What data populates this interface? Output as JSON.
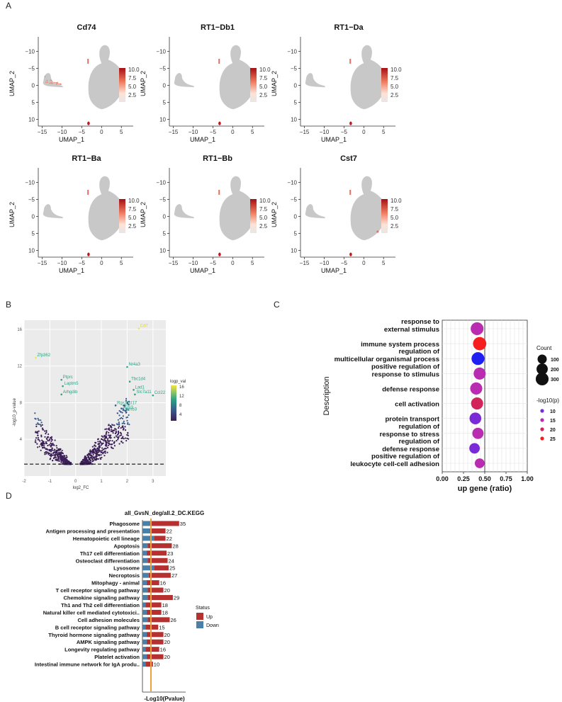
{
  "panel_labels": {
    "a": "A",
    "b": "B",
    "c": "C",
    "d": "D"
  },
  "umap": {
    "x_label": "UMAP_1",
    "y_label": "UMAP_2",
    "x_ticks": [
      "−15",
      "−10",
      "−5",
      "0",
      "5"
    ],
    "y_ticks": [
      "10",
      "5",
      "0",
      "−5",
      "−10"
    ],
    "legend_ticks": [
      "10.0",
      "7.5",
      "5.0",
      "2.5"
    ],
    "colors": {
      "cluster": "#c8c8c8",
      "expr_high": "#c0181f",
      "expr_low": "#fde3d6"
    }
  },
  "volcano": {
    "x_label": "log2_FC",
    "y_label": "-log10_p-value",
    "legend_title": "logp_val",
    "legend_ticks": [
      "16",
      "12",
      "8",
      "4"
    ]
  },
  "go": {
    "x_label": "up gene (ratio)",
    "y_label": "Description",
    "count_title": "Count",
    "count_items": [
      "100",
      "200",
      "300"
    ],
    "p_title": "-log10(p)",
    "p_items": [
      "10",
      "15",
      "20",
      "25"
    ]
  },
  "kegg": {
    "title": "all_GvsN_deg/all.2_DC.KEGG",
    "x_label": "-Log10(Pvalue)",
    "legend_title": "Status",
    "legend_items": [
      "Up",
      "Down"
    ],
    "colors": {
      "up": "#b5302e",
      "down": "#4a7fa8",
      "threshold": "#e8a33c"
    }
  },
  "chart_data": [
    {
      "type": "scatter",
      "title": "UMAP feature plots",
      "panels": [
        "Cd74",
        "RT1−Db1",
        "RT1−Da",
        "RT1−Ba",
        "RT1−Bb",
        "Cst7"
      ],
      "xlabel": "UMAP_1",
      "ylabel": "UMAP_2",
      "xlim": [
        -16,
        8
      ],
      "ylim": [
        -12,
        13
      ],
      "x_ticks": [
        -15,
        -10,
        -5,
        0,
        5
      ],
      "y_ticks": [
        -10,
        -5,
        0,
        5,
        10
      ],
      "color_scale": {
        "min": 0,
        "max": 10,
        "ticks": [
          2.5,
          5.0,
          7.5,
          10.0
        ]
      }
    },
    {
      "type": "scatter",
      "title": "",
      "xlabel": "log2_FC",
      "ylabel": "-log10_p-value",
      "xlim": [
        -2,
        3.5
      ],
      "ylim": [
        0,
        17
      ],
      "x_ticks": [
        -2,
        -1,
        0,
        1,
        2,
        3
      ],
      "y_ticks": [
        4,
        8,
        12,
        16
      ],
      "threshold_y": 1.3,
      "labeled_points": [
        {
          "label": "Cd7",
          "x": 2.45,
          "y": 16.1
        },
        {
          "label": "Zfp362",
          "x": -1.55,
          "y": 12.9
        },
        {
          "label": "Ptprc",
          "x": -0.55,
          "y": 10.5
        },
        {
          "label": "Laptm5",
          "x": -0.5,
          "y": 9.8
        },
        {
          "label": "Arhgdib",
          "x": -0.55,
          "y": 8.9
        },
        {
          "label": "Nr4a3",
          "x": 2.0,
          "y": 11.9
        },
        {
          "label": "Tbc1d4",
          "x": 2.1,
          "y": 10.3
        },
        {
          "label": "Lad1",
          "x": 2.25,
          "y": 9.4
        },
        {
          "label": "Slc7a11",
          "x": 2.3,
          "y": 8.9
        },
        {
          "label": "Ccl22",
          "x": 3.0,
          "y": 8.8
        },
        {
          "label": "Rgs1",
          "x": 1.55,
          "y": 7.7
        },
        {
          "label": "Ccl17",
          "x": 1.9,
          "y": 7.7
        },
        {
          "label": "Ebi3",
          "x": 1.85,
          "y": 7.2
        },
        {
          "label": "Cacnb3",
          "x": 1.75,
          "y": 7.0
        }
      ],
      "legend": {
        "title": "logp_val",
        "ticks": [
          16,
          12,
          8,
          4
        ]
      }
    },
    {
      "type": "scatter",
      "title": "",
      "xlabel": "up gene (ratio)",
      "ylabel": "Description",
      "xlim": [
        0,
        1
      ],
      "x_ticks": [
        "0.00",
        "0.25",
        "0.50",
        "0.75",
        "1.00"
      ],
      "reference_x": 0.5,
      "categories": [
        "response to\nexternal stimulus",
        "immune system process",
        "regulation of\nmulticellular organismal process",
        "positive regulation of\nresponse to stimulus",
        "defense response",
        "cell activation",
        "protein transport",
        "regulation of\nresponse to stress",
        "regulation of\ndefense response",
        "positive regulation of\nleukocyte cell-cell adhesion"
      ],
      "ratio": [
        0.41,
        0.44,
        0.42,
        0.44,
        0.4,
        0.41,
        0.39,
        0.42,
        0.38,
        0.44
      ],
      "count": [
        300,
        330,
        300,
        250,
        250,
        250,
        230,
        200,
        160,
        120
      ],
      "neg_log10_p": [
        13,
        28,
        5,
        12,
        14,
        23,
        9,
        12,
        9,
        14
      ],
      "legend": {
        "count": [
          100,
          200,
          300
        ],
        "neg_log10_p": [
          10,
          15,
          20,
          25
        ]
      }
    },
    {
      "type": "bar",
      "title": "all_GvsN_deg/all.2_DC.KEGG",
      "xlabel": "-Log10(Pvalue)",
      "categories": [
        "Phagosome",
        "Antigen processing and presentation",
        "Hematopoietic cell lineage",
        "Apoptosis",
        "Th17 cell differentiation",
        "Osteoclast differentiation",
        "Lysosome",
        "Necroptosis",
        "Mitophagy - animal",
        "T cell receptor signaling pathway",
        "Chemokine signaling pathway",
        "Th1 and Th2 cell differentiation",
        "Natural killer cell mediated cytotoxici..",
        "Cell adhesion molecules",
        "B cell receptor signaling pathway",
        "Thyroid hormone signaling pathway",
        "AMPK signaling pathway",
        "Longevity regulating pathway",
        "Platelet activation",
        "Intestinal immune network for IgA produ.."
      ],
      "totals": [
        35,
        22,
        22,
        28,
        23,
        24,
        25,
        27,
        16,
        20,
        29,
        18,
        18,
        26,
        15,
        20,
        20,
        16,
        20,
        10
      ],
      "series": [
        {
          "name": "Up",
          "values": [
            27,
            15,
            11,
            23,
            19,
            19,
            14,
            21,
            12,
            15,
            24,
            15,
            14,
            21,
            12,
            16,
            16,
            13,
            16,
            7
          ]
        },
        {
          "name": "Down",
          "values": [
            8,
            7,
            11,
            5,
            4,
            5,
            11,
            6,
            4,
            5,
            5,
            3,
            4,
            5,
            3,
            4,
            4,
            3,
            4,
            3
          ]
        }
      ],
      "stacked": true
    }
  ]
}
